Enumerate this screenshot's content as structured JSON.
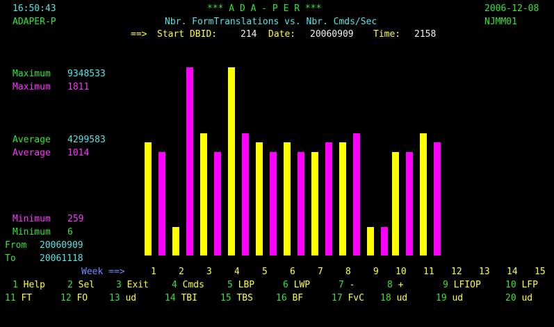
{
  "header": {
    "time": "16:50:43",
    "title": "*** A D A - P E R ***",
    "date": "2006-12-08",
    "program": "ADAPER-P",
    "subtitle": "Nbr. FormTranslations vs. Nbr. Cmds/Sec",
    "node": "NJMM01",
    "arrow": "==>",
    "start_label": "Start DBID:",
    "dbid": "214",
    "date_label": "Date:",
    "start_date": "20060909",
    "time_label": "Time:",
    "start_time": "2158"
  },
  "stats": {
    "max_label": "Maximum",
    "max1": "9348533",
    "max2": "1811",
    "avg_label": "Average",
    "avg1": "4299583",
    "avg2": "1014",
    "min_label": "Minimum",
    "min1": "259",
    "min2": "6",
    "from_label": "From",
    "from_value": "20060909",
    "to_label": "To",
    "to_value": "20061118"
  },
  "colors": {
    "series1": "#ffff00",
    "series2": "#ff00ff",
    "background": "#000000"
  },
  "chart_data": {
    "type": "bar",
    "xlabel": "Week ==>",
    "categories": [
      "1",
      "2",
      "3",
      "4",
      "5",
      "6",
      "7",
      "8",
      "9",
      "10",
      "11",
      "12",
      "13",
      "14",
      "15"
    ],
    "series": [
      {
        "values": [
          0.6,
          0.15,
          0.65,
          1.0,
          0.6,
          0.6,
          0.55,
          0.6,
          0.15,
          0.55,
          0.65,
          null,
          null,
          null,
          null
        ]
      },
      {
        "values": [
          0.55,
          1.0,
          0.55,
          0.65,
          0.55,
          0.55,
          0.6,
          0.65,
          0.15,
          0.55,
          0.6,
          null,
          null,
          null,
          null
        ]
      }
    ]
  },
  "fkeys_row1": [
    {
      "num": "1",
      "label": "Help"
    },
    {
      "num": "2",
      "label": "Sel"
    },
    {
      "num": "3",
      "label": "Exit"
    },
    {
      "num": "4",
      "label": "Cmds"
    },
    {
      "num": "5",
      "label": "LBP"
    },
    {
      "num": "6",
      "label": "LWP"
    },
    {
      "num": "7",
      "label": "-"
    },
    {
      "num": "8",
      "label": "+"
    },
    {
      "num": "9",
      "label": "LFIOP"
    },
    {
      "num": "10",
      "label": "LFP"
    }
  ],
  "fkeys_row2": [
    {
      "num": "11",
      "label": "FT"
    },
    {
      "num": "12",
      "label": "FO"
    },
    {
      "num": "13",
      "label": "ud"
    },
    {
      "num": "14",
      "label": "TBI"
    },
    {
      "num": "15",
      "label": "TBS"
    },
    {
      "num": "16",
      "label": "BF"
    },
    {
      "num": "17",
      "label": "FvC"
    },
    {
      "num": "18",
      "label": "ud"
    },
    {
      "num": "19",
      "label": "ud"
    },
    {
      "num": "20",
      "label": "ud"
    }
  ]
}
